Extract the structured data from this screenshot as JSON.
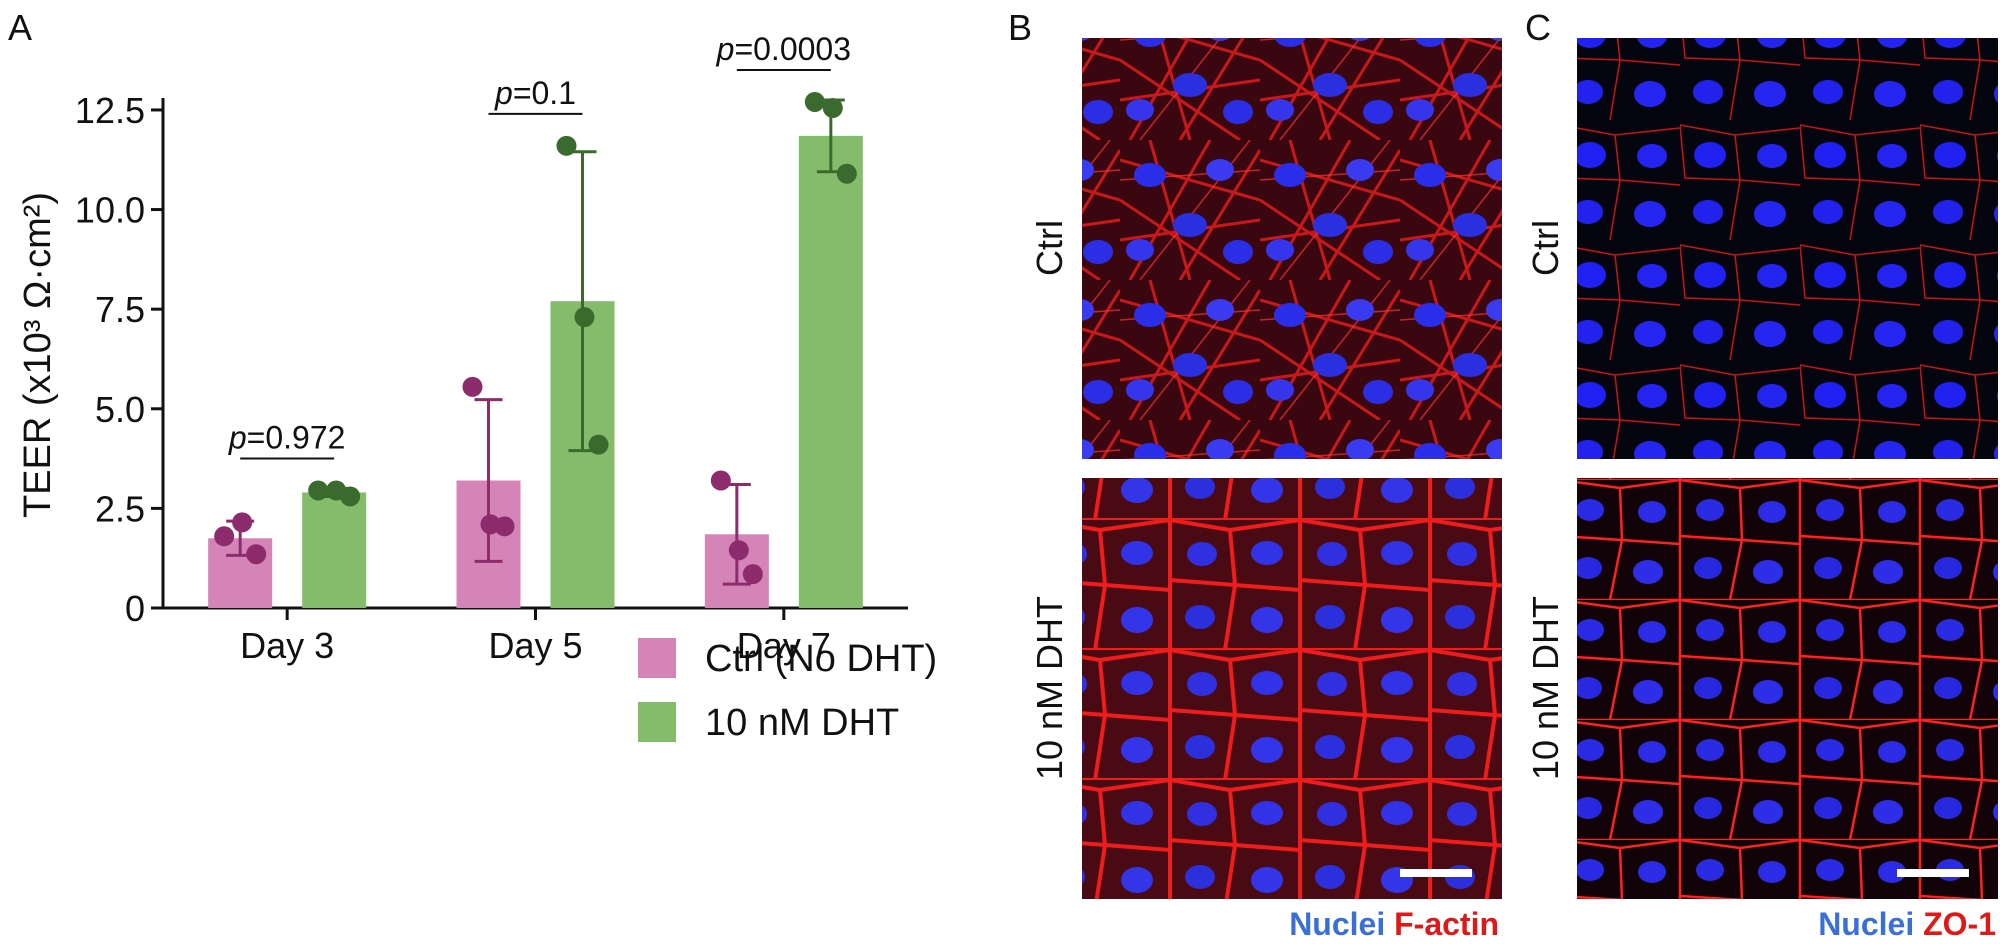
{
  "panel_labels": [
    "A",
    "B",
    "C"
  ],
  "chart_data": {
    "type": "bar",
    "ylabel": "TEER (x10³ Ω·cm²)",
    "categories": [
      "Day 3",
      "Day 5",
      "Day 7"
    ],
    "ylim": [
      0,
      12.8
    ],
    "yticks": [
      0,
      2.5,
      {
        "value": 5,
        "label": "5.0"
      },
      7.5,
      {
        "value": 10,
        "label": "10.0"
      },
      12.5
    ],
    "legend": "below",
    "series": [
      {
        "name": "Ctrl (No DHT)",
        "color": "#d584b8",
        "point_color": "#8c2c6d",
        "values": [
          1.75,
          3.2,
          1.85
        ],
        "errors": [
          0.43,
          2.03,
          1.25
        ],
        "points": [
          [
            1.8,
            2.15,
            1.35
          ],
          [
            5.55,
            2.1,
            2.05
          ],
          [
            3.2,
            1.45,
            0.85
          ]
        ]
      },
      {
        "name": "10 nM DHT",
        "color": "#84bc6c",
        "point_color": "#3b6a2f",
        "values": [
          2.9,
          7.7,
          11.85
        ],
        "errors": [
          0.1,
          3.75,
          0.9
        ],
        "points": [
          [
            2.95,
            2.95,
            2.8
          ],
          [
            11.6,
            7.3,
            4.1
          ],
          [
            12.7,
            12.55,
            10.9
          ]
        ]
      }
    ],
    "annotations": [
      {
        "symbol": "p",
        "text": "=0.972"
      },
      {
        "symbol": "p",
        "text": "=0.1"
      },
      {
        "symbol": "p",
        "text": "=0.0003"
      }
    ]
  },
  "micrographs": [
    {
      "row_labels": [
        "Ctrl",
        "10 nM DHT"
      ],
      "stain": [
        "Nuclei",
        "F-actin"
      ]
    },
    {
      "row_labels": [
        "Ctrl",
        "10 nM DHT"
      ],
      "stain": [
        "Nuclei",
        "ZO-1"
      ]
    }
  ]
}
